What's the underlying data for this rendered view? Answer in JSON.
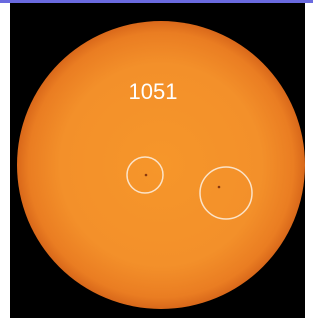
{
  "image": {
    "label": "1051"
  }
}
